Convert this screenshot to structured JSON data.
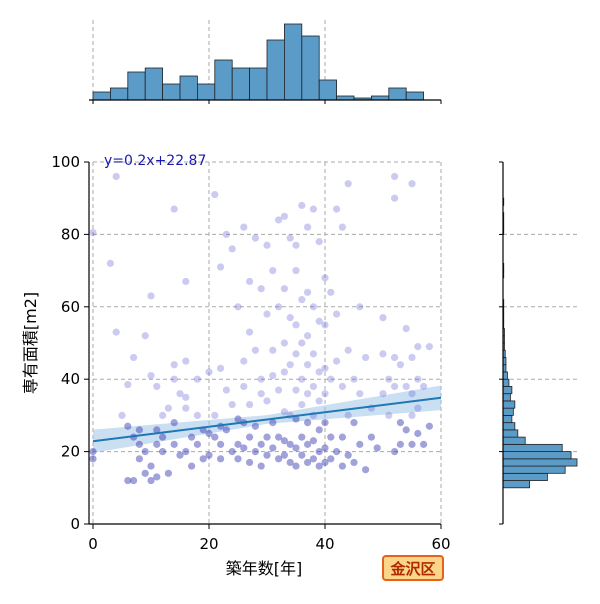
{
  "chart_data": {
    "type": "scatter",
    "xlabel": "築年数[年]",
    "ylabel": "専有面積[m2]",
    "xlim": [
      0,
      60
    ],
    "ylim": [
      0,
      100
    ],
    "xticks": [
      0,
      20,
      40,
      60
    ],
    "yticks": [
      0,
      20,
      40,
      60,
      80,
      100
    ],
    "grid": true,
    "annotation": "y=0.2x+22.87",
    "regression": {
      "slope": 0.2,
      "intercept": 22.87
    },
    "region_label": "金沢区",
    "colors": {
      "point": "#6a6ad8",
      "point_dense": "#3030b0",
      "regression_line": "#1f77b4",
      "confidence_band": "#9ec5e6",
      "histogram_fill": "#5b9bc8",
      "annotation_text": "#1a1aaa",
      "badge_fill": "#fbd58a",
      "badge_border": "#e8611a"
    },
    "points": [
      [
        0,
        80.5
      ],
      [
        0,
        20
      ],
      [
        0,
        18
      ],
      [
        3,
        72
      ],
      [
        4,
        96
      ],
      [
        4,
        53
      ],
      [
        5,
        30
      ],
      [
        6,
        38.5
      ],
      [
        6,
        12
      ],
      [
        6,
        27
      ],
      [
        7,
        46
      ],
      [
        7,
        24
      ],
      [
        7,
        12
      ],
      [
        8,
        26
      ],
      [
        8,
        22
      ],
      [
        8,
        18
      ],
      [
        9,
        52
      ],
      [
        9,
        14
      ],
      [
        9,
        20
      ],
      [
        10,
        63
      ],
      [
        10,
        41
      ],
      [
        10,
        16
      ],
      [
        10,
        12
      ],
      [
        11,
        38
      ],
      [
        11,
        22
      ],
      [
        11,
        26
      ],
      [
        11,
        13
      ],
      [
        12,
        24
      ],
      [
        12,
        30
      ],
      [
        12,
        20
      ],
      [
        13,
        14
      ],
      [
        13,
        32
      ],
      [
        14,
        87
      ],
      [
        14,
        44
      ],
      [
        14,
        40
      ],
      [
        14,
        28
      ],
      [
        14,
        22
      ],
      [
        15,
        19
      ],
      [
        15,
        36
      ],
      [
        16,
        67
      ],
      [
        16,
        45
      ],
      [
        16,
        35
      ],
      [
        16,
        20
      ],
      [
        16,
        32
      ],
      [
        17,
        24
      ],
      [
        17,
        16
      ],
      [
        18,
        40
      ],
      [
        18,
        22
      ],
      [
        18,
        30
      ],
      [
        19,
        26
      ],
      [
        19,
        18
      ],
      [
        20,
        25
      ],
      [
        20,
        19
      ],
      [
        20,
        42
      ],
      [
        21,
        91
      ],
      [
        21,
        24
      ],
      [
        21,
        30
      ],
      [
        22,
        71
      ],
      [
        22,
        43
      ],
      [
        22,
        22
      ],
      [
        22,
        27
      ],
      [
        22,
        18
      ],
      [
        23,
        80
      ],
      [
        23,
        37
      ],
      [
        23,
        26
      ],
      [
        24,
        76
      ],
      [
        24,
        20
      ],
      [
        24,
        33
      ],
      [
        25,
        60
      ],
      [
        25,
        22
      ],
      [
        25,
        29
      ],
      [
        25,
        18
      ],
      [
        26,
        82
      ],
      [
        26,
        45
      ],
      [
        26,
        38
      ],
      [
        26,
        28
      ],
      [
        26,
        21
      ],
      [
        27,
        67
      ],
      [
        27,
        53
      ],
      [
        27,
        24
      ],
      [
        27,
        33
      ],
      [
        27,
        17
      ],
      [
        28,
        79
      ],
      [
        28,
        48
      ],
      [
        28,
        20
      ],
      [
        28,
        27
      ],
      [
        29,
        65
      ],
      [
        29,
        40
      ],
      [
        29,
        22
      ],
      [
        29,
        36
      ],
      [
        29,
        16
      ],
      [
        30,
        77
      ],
      [
        30,
        58
      ],
      [
        30,
        34
      ],
      [
        30,
        24
      ],
      [
        30,
        19
      ],
      [
        31,
        70
      ],
      [
        31,
        48
      ],
      [
        31,
        41
      ],
      [
        31,
        28
      ],
      [
        31,
        21
      ],
      [
        32,
        84
      ],
      [
        32,
        60
      ],
      [
        32,
        37
      ],
      [
        32,
        24
      ],
      [
        32,
        18
      ],
      [
        33,
        85
      ],
      [
        33,
        65
      ],
      [
        33,
        50
      ],
      [
        33,
        42
      ],
      [
        33,
        31
      ],
      [
        33,
        23
      ],
      [
        33,
        19
      ],
      [
        34,
        79
      ],
      [
        34,
        57
      ],
      [
        34,
        44
      ],
      [
        34,
        30
      ],
      [
        34,
        22
      ],
      [
        34,
        17
      ],
      [
        35,
        77
      ],
      [
        35,
        70
      ],
      [
        35,
        55
      ],
      [
        35,
        47
      ],
      [
        35,
        37
      ],
      [
        35,
        29
      ],
      [
        35,
        21
      ],
      [
        35,
        16
      ],
      [
        36,
        88
      ],
      [
        36,
        62
      ],
      [
        36,
        50
      ],
      [
        36,
        40
      ],
      [
        36,
        33
      ],
      [
        36,
        24
      ],
      [
        36,
        19
      ],
      [
        37,
        82
      ],
      [
        37,
        64
      ],
      [
        37,
        52
      ],
      [
        37,
        44
      ],
      [
        37,
        36
      ],
      [
        37,
        28
      ],
      [
        37,
        22
      ],
      [
        37,
        17
      ],
      [
        38,
        87
      ],
      [
        38,
        60
      ],
      [
        38,
        47
      ],
      [
        38,
        38
      ],
      [
        38,
        30
      ],
      [
        38,
        23
      ],
      [
        38,
        18
      ],
      [
        39,
        78
      ],
      [
        39,
        56
      ],
      [
        39,
        42
      ],
      [
        39,
        34
      ],
      [
        39,
        26
      ],
      [
        39,
        20
      ],
      [
        39,
        16
      ],
      [
        40,
        68
      ],
      [
        40,
        55
      ],
      [
        40,
        43
      ],
      [
        40,
        36
      ],
      [
        40,
        28
      ],
      [
        40,
        21
      ],
      [
        40,
        17
      ],
      [
        41,
        64
      ],
      [
        41,
        40
      ],
      [
        41,
        24
      ],
      [
        41,
        18
      ],
      [
        42,
        87
      ],
      [
        42,
        58
      ],
      [
        42,
        45
      ],
      [
        42,
        20
      ],
      [
        43,
        82
      ],
      [
        43,
        38
      ],
      [
        43,
        24
      ],
      [
        43,
        16
      ],
      [
        44,
        94
      ],
      [
        44,
        48
      ],
      [
        44,
        30
      ],
      [
        44,
        19
      ],
      [
        45,
        40
      ],
      [
        45,
        28
      ],
      [
        45,
        17
      ],
      [
        46,
        60
      ],
      [
        46,
        36
      ],
      [
        46,
        22
      ],
      [
        47,
        46
      ],
      [
        47,
        15
      ],
      [
        48,
        32
      ],
      [
        48,
        24
      ],
      [
        49,
        21
      ],
      [
        50,
        57
      ],
      [
        50,
        47
      ],
      [
        50,
        36
      ],
      [
        51,
        40
      ],
      [
        51,
        30
      ],
      [
        52,
        96
      ],
      [
        52,
        90
      ],
      [
        52,
        46
      ],
      [
        52,
        38
      ],
      [
        52,
        20
      ],
      [
        53,
        44
      ],
      [
        53,
        28
      ],
      [
        53,
        22
      ],
      [
        54,
        54
      ],
      [
        54,
        38
      ],
      [
        54,
        26
      ],
      [
        55,
        94
      ],
      [
        55,
        46
      ],
      [
        55,
        36
      ],
      [
        55,
        30
      ],
      [
        55,
        22
      ],
      [
        56,
        49
      ],
      [
        56,
        40
      ],
      [
        56,
        32
      ],
      [
        56,
        25
      ],
      [
        57,
        38
      ],
      [
        57,
        22
      ],
      [
        58,
        49
      ],
      [
        58,
        27
      ]
    ],
    "histogram_x": {
      "bin_edges": [
        0,
        3,
        6,
        9,
        12,
        15,
        18,
        21,
        24,
        27,
        30,
        33,
        36,
        39,
        42,
        45,
        48,
        51,
        54,
        57,
        60
      ],
      "counts": [
        2,
        3,
        7,
        8,
        4,
        6,
        4,
        10,
        8,
        8,
        15,
        19,
        16,
        5,
        1,
        0.5,
        1,
        3,
        2,
        0
      ]
    },
    "histogram_y": {
      "bin_edges": [
        10,
        12,
        14,
        16,
        18,
        20,
        22,
        24,
        26,
        28,
        30,
        32,
        34,
        36,
        38,
        40,
        42,
        44,
        46,
        48,
        50,
        52,
        54,
        56,
        58,
        60,
        62,
        68,
        70,
        72,
        74,
        80,
        82,
        86,
        88,
        90,
        92
      ],
      "counts": [
        18,
        30,
        42,
        50,
        46,
        40,
        15,
        10,
        8,
        6,
        7,
        8,
        5,
        6,
        4,
        3,
        2,
        2,
        1.5,
        1,
        1,
        1,
        0.5,
        0.5,
        0.5,
        0.5,
        0,
        0.5,
        0.5,
        0,
        0,
        0.5,
        0.5,
        0,
        0.5,
        0
      ]
    }
  }
}
